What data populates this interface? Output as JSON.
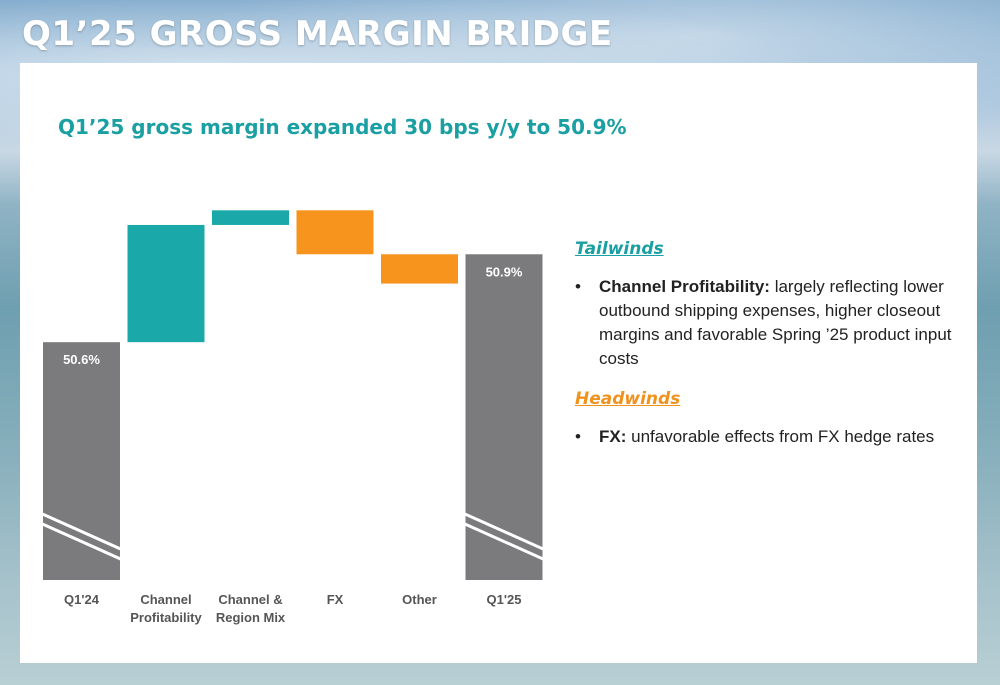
{
  "page": {
    "title": "Q1’25 GROSS MARGIN BRIDGE",
    "subtitle": "Q1’25 gross margin expanded 30 bps y/y to 50.9%"
  },
  "chart_data": {
    "type": "bar",
    "subtype": "waterfall",
    "categories": [
      "Q1'24",
      "Channel Profitability",
      "Channel & Region Mix",
      "FX",
      "Other",
      "Q1'25"
    ],
    "category_labels": [
      [
        "Q1'24"
      ],
      [
        "Channel",
        "Profitability"
      ],
      [
        "Channel &",
        "Region Mix"
      ],
      [
        "FX"
      ],
      [
        "Other"
      ],
      [
        "Q1'25"
      ]
    ],
    "values": [
      50.6,
      0.4,
      0.05,
      -0.15,
      -0.1,
      50.9
    ],
    "measures": [
      "absolute",
      "relative",
      "relative",
      "relative",
      "relative",
      "total"
    ],
    "data_labels": [
      "50.6%",
      "",
      "",
      "",
      "",
      "50.9%"
    ],
    "colors": {
      "total": "#7b7b7d",
      "increase": "#1aa8a8",
      "decrease": "#f7941d"
    },
    "axis_break": true,
    "ylim": [
      50.0,
      51.15
    ],
    "xlabel": "",
    "ylabel": ""
  },
  "notes": {
    "tailwinds_heading": "Tailwinds",
    "tailwinds": [
      {
        "term": "Channel Profitability:",
        "text": " largely reflecting lower outbound shipping expenses, higher closeout margins and favorable Spring ’25 product input costs"
      }
    ],
    "headwinds_heading": "Headwinds",
    "headwinds": [
      {
        "term": "FX:",
        "text": " unfavorable effects from FX hedge rates"
      }
    ],
    "bullet_char": "•"
  }
}
